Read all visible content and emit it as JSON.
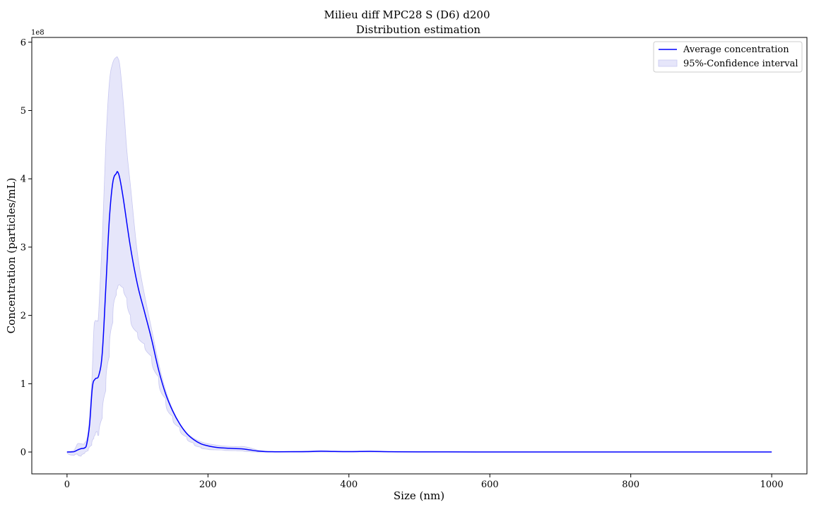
{
  "chart_data": {
    "type": "line",
    "suptitle": "Milieu diff MPC28 S (D6) d200",
    "title": "Distribution estimation",
    "xlabel": "Size (nm)",
    "ylabel": "Concentration (particles/mL)",
    "y_offset_label": "1e8",
    "xlim": [
      -50,
      1050
    ],
    "ylim": [
      -32000000,
      607000000
    ],
    "x_ticks": [
      0,
      200,
      400,
      600,
      800,
      1000
    ],
    "x_tick_labels": [
      "0",
      "200",
      "400",
      "600",
      "800",
      "1000"
    ],
    "y_ticks": [
      0,
      100000000,
      200000000,
      300000000,
      400000000,
      500000000,
      600000000
    ],
    "y_tick_labels": [
      "0",
      "1",
      "2",
      "3",
      "4",
      "5",
      "6"
    ],
    "grid": false,
    "legend_position": "top-right",
    "legend": [
      "Average concentration",
      "95%-Confidence interval"
    ],
    "colors": {
      "line": "#0000ff",
      "band": "#e6e6fa",
      "band_edge": "#c8c8f0"
    },
    "series": [
      {
        "name": "Average concentration",
        "x": [
          0,
          5,
          10,
          15,
          20,
          25,
          28,
          32,
          36,
          40,
          45,
          50,
          55,
          60,
          65,
          70,
          72,
          75,
          80,
          90,
          100,
          110,
          120,
          130,
          140,
          150,
          160,
          170,
          180,
          190,
          200,
          210,
          220,
          230,
          240,
          250,
          260,
          270,
          280,
          290,
          300,
          320,
          340,
          360,
          380,
          400,
          430,
          460,
          500,
          600,
          700,
          800,
          900,
          1000
        ],
        "y": [
          0,
          100000,
          500000,
          3000000,
          5000000,
          6000000,
          12000000,
          40000000,
          95000000,
          107000000,
          112000000,
          145000000,
          240000000,
          340000000,
          395000000,
          408000000,
          410000000,
          400000000,
          370000000,
          300000000,
          245000000,
          205000000,
          165000000,
          120000000,
          85000000,
          60000000,
          41000000,
          27000000,
          18000000,
          12000000,
          9000000,
          7000000,
          6000000,
          5500000,
          5000000,
          4500000,
          3000000,
          1500000,
          700000,
          400000,
          300000,
          400000,
          600000,
          1200000,
          800000,
          600000,
          900000,
          400000,
          200000,
          100000,
          50000,
          30000,
          20000,
          10000
        ]
      },
      {
        "name": "95%-Confidence interval",
        "x": [
          0,
          10,
          15,
          20,
          25,
          30,
          35,
          38,
          40,
          43,
          45,
          50,
          55,
          60,
          65,
          70,
          72,
          75,
          80,
          85,
          90,
          100,
          110,
          120,
          130,
          140,
          150,
          160,
          170,
          180,
          190,
          200,
          220,
          240,
          250,
          260,
          270,
          280,
          300,
          350,
          400,
          500,
          700,
          1000
        ],
        "upper": [
          0,
          3000000,
          12000000,
          12000000,
          13000000,
          30000000,
          100000000,
          178000000,
          192000000,
          192000000,
          205000000,
          310000000,
          450000000,
          540000000,
          570000000,
          578000000,
          577000000,
          565000000,
          510000000,
          440000000,
          390000000,
          290000000,
          230000000,
          180000000,
          130000000,
          90000000,
          62000000,
          42000000,
          28000000,
          20000000,
          15000000,
          12000000,
          9000000,
          8000000,
          8000000,
          6000000,
          3000000,
          1500000,
          800000,
          1500000,
          1000000,
          400000,
          100000,
          20000
        ],
        "lower": [
          0,
          -5000000,
          -3000000,
          -6000000,
          -2000000,
          2000000,
          10000000,
          20000000,
          25000000,
          30000000,
          25000000,
          50000000,
          90000000,
          140000000,
          190000000,
          230000000,
          240000000,
          245000000,
          240000000,
          225000000,
          200000000,
          175000000,
          158000000,
          140000000,
          110000000,
          78000000,
          52000000,
          36000000,
          22000000,
          13000000,
          7000000,
          4000000,
          3000000,
          2000000,
          1500000,
          500000,
          0,
          0,
          0,
          0,
          0,
          0,
          0,
          0
        ]
      }
    ]
  }
}
